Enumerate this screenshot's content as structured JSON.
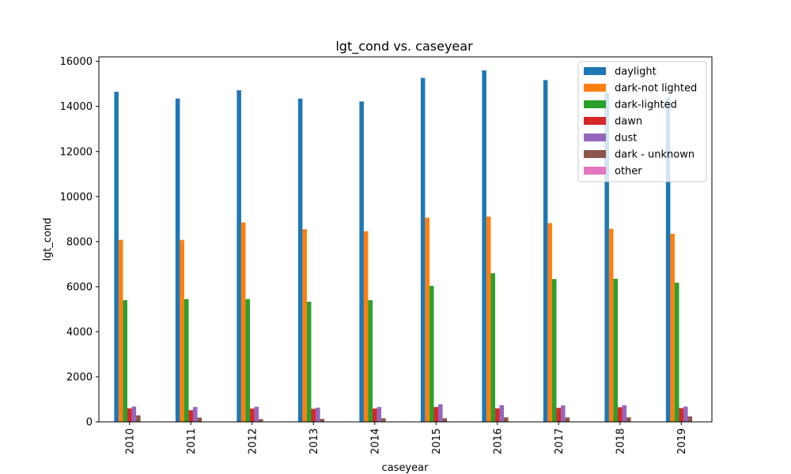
{
  "chart_data": {
    "type": "bar",
    "title": "lgt_cond vs. caseyear",
    "xlabel": "caseyear",
    "ylabel": "lgt_cond",
    "categories": [
      "2010",
      "2011",
      "2012",
      "2013",
      "2014",
      "2015",
      "2016",
      "2017",
      "2018",
      "2019"
    ],
    "ylim": [
      0,
      16200
    ],
    "yticks": [
      0,
      2000,
      4000,
      6000,
      8000,
      10000,
      12000,
      14000,
      16000
    ],
    "grid": false,
    "legend_position": "top-right",
    "series": [
      {
        "name": "daylight",
        "color": "#1f77b4",
        "values": [
          14650,
          14350,
          14720,
          14350,
          14220,
          15270,
          15600,
          15170,
          14600,
          14400
        ]
      },
      {
        "name": "dark-not lighted",
        "color": "#ff7f0e",
        "values": [
          8080,
          8080,
          8850,
          8550,
          8460,
          9060,
          9110,
          8820,
          8570,
          8350
        ]
      },
      {
        "name": "dark-lighted",
        "color": "#2ca02c",
        "values": [
          5400,
          5450,
          5450,
          5330,
          5400,
          6040,
          6600,
          6340,
          6350,
          6180
        ]
      },
      {
        "name": "dawn",
        "color": "#d62728",
        "values": [
          600,
          520,
          590,
          580,
          590,
          660,
          600,
          620,
          650,
          610
        ]
      },
      {
        "name": "dust",
        "color": "#9467bd",
        "values": [
          680,
          660,
          670,
          630,
          660,
          780,
          740,
          730,
          740,
          680
        ]
      },
      {
        "name": "dark - unknown",
        "color": "#8c564b",
        "values": [
          290,
          190,
          120,
          130,
          160,
          160,
          200,
          200,
          200,
          240
        ]
      },
      {
        "name": "other",
        "color": "#e377c2",
        "values": [
          10,
          10,
          10,
          10,
          10,
          10,
          10,
          10,
          10,
          10
        ]
      }
    ]
  }
}
